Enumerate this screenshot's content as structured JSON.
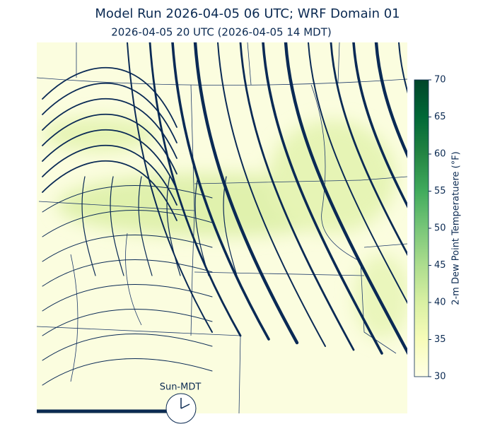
{
  "title": "Model Run 2026-04-05 06 UTC; WRF Domain 01",
  "subtitle": "2026-04-05 20 UTC  (2026-04-05 14 MDT)",
  "colorbar": {
    "label": "2-m Dew Point Temperatuere (°F)",
    "lim": [
      30,
      70
    ],
    "ticks": [
      30,
      35,
      40,
      45,
      50,
      55,
      60,
      65,
      70
    ]
  },
  "clock": {
    "label": "Sun-MDT"
  }
}
